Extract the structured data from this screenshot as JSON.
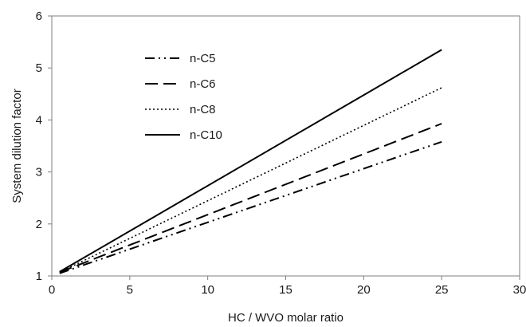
{
  "chart_data": {
    "type": "line",
    "title": "",
    "xlabel": "HC / WVO molar ratio",
    "ylabel": "System dilution factor",
    "xlim": [
      0,
      30
    ],
    "ylim": [
      1,
      6
    ],
    "xticks": [
      0,
      5,
      10,
      15,
      20,
      25,
      30
    ],
    "yticks": [
      1,
      2,
      3,
      4,
      5,
      6
    ],
    "grid": false,
    "legend_position": "top-left",
    "series": [
      {
        "name": "n-C5",
        "line_style": "dash-dot-dot",
        "color": "#000000",
        "x": [
          0.5,
          25
        ],
        "y": [
          1.05,
          3.58
        ]
      },
      {
        "name": "n-C6",
        "line_style": "long-dash",
        "color": "#000000",
        "x": [
          0.5,
          25
        ],
        "y": [
          1.07,
          3.93
        ]
      },
      {
        "name": "n-C8",
        "line_style": "dotted",
        "color": "#000000",
        "x": [
          0.5,
          25
        ],
        "y": [
          1.07,
          4.62
        ]
      },
      {
        "name": "n-C10",
        "line_style": "solid",
        "color": "#000000",
        "x": [
          0.5,
          25
        ],
        "y": [
          1.08,
          5.35
        ]
      }
    ]
  }
}
